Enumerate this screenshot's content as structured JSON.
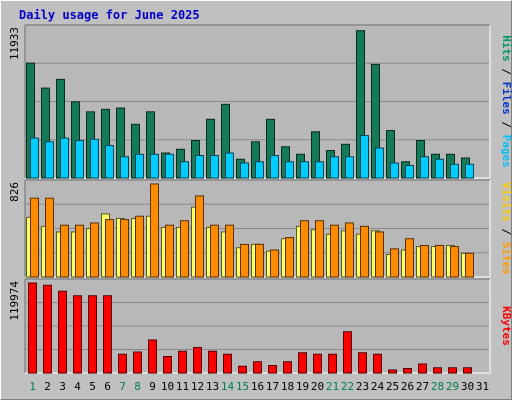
{
  "title": "Daily usage for June 2025",
  "chart_data": {
    "type": "bar",
    "title": "Daily usage for June 2025",
    "days": [
      1,
      2,
      3,
      4,
      5,
      6,
      7,
      8,
      9,
      10,
      11,
      12,
      13,
      14,
      15,
      16,
      17,
      18,
      19,
      20,
      21,
      22,
      23,
      24,
      25,
      26,
      27,
      28,
      29,
      30,
      31
    ],
    "weekend_days": [
      1,
      7,
      8,
      14,
      15,
      21,
      22,
      28,
      29
    ],
    "panels": [
      {
        "id": "hits-files-pages",
        "ymax_label": "11933",
        "ymax": 11933,
        "right_labels": [
          "Pages",
          "Files",
          "Hits"
        ],
        "right_label_colors": [
          "#00bfff",
          "#0033cc",
          "#009966"
        ],
        "series": [
          {
            "name": "Hits",
            "color": "#157a57",
            "values": [
              9200,
              7200,
              7900,
              6100,
              5300,
              5500,
              5600,
              4300,
              5300,
              2000,
              2300,
              3000,
              4700,
              5900,
              1500,
              2900,
              4700,
              2500,
              1900,
              3700,
              2200,
              2700,
              11800,
              9100,
              3800,
              1300,
              3000,
              1900,
              1900,
              1600,
              0
            ]
          },
          {
            "name": "Files",
            "color": "#00ccff",
            "values": [
              3200,
              2900,
              3200,
              3000,
              3100,
              2600,
              1700,
              1900,
              1900,
              1900,
              1300,
              1800,
              1800,
              2000,
              1200,
              1300,
              1800,
              1300,
              1300,
              1300,
              1700,
              1700,
              3400,
              2400,
              1200,
              1000,
              1700,
              1500,
              1100,
              1100,
              0
            ]
          },
          {
            "name": "Pages",
            "color": "#00ccff",
            "values": [
              0,
              0,
              0,
              0,
              0,
              0,
              0,
              0,
              0,
              0,
              0,
              0,
              0,
              0,
              0,
              0,
              0,
              0,
              0,
              0,
              0,
              0,
              0,
              0,
              0,
              0,
              0,
              0,
              0,
              0,
              0
            ]
          }
        ]
      },
      {
        "id": "visits-sites",
        "ymax_label": "826",
        "ymax": 826,
        "right_labels": [
          "Sites",
          "Visits"
        ],
        "right_label_colors": [
          "#ff9900",
          "#ffcc00"
        ],
        "series": [
          {
            "name": "Visits",
            "color": "#ffff66",
            "values": [
              530,
              450,
              400,
              400,
              430,
              560,
              520,
              520,
              540,
              440,
              440,
              620,
              440,
              400,
              260,
              290,
              230,
              340,
              450,
              420,
              380,
              410,
              380,
              410,
              200,
              240,
              270,
              270,
              280,
              210,
              0
            ]
          },
          {
            "name": "Sites",
            "color": "#ff8c00",
            "values": [
              700,
              700,
              460,
              460,
              480,
              510,
              510,
              540,
              826,
              460,
              500,
              720,
              460,
              460,
              290,
              290,
              240,
              350,
              500,
              500,
              460,
              480,
              450,
              400,
              250,
              340,
              280,
              280,
              270,
              210,
              0
            ]
          }
        ]
      },
      {
        "id": "kbytes",
        "ymax_label": "119974",
        "ymax": 119974,
        "right_labels": [
          "KBytes"
        ],
        "right_label_colors": [
          "#ff0000"
        ],
        "series": [
          {
            "name": "KBytes",
            "color": "#ff0000",
            "values": [
              119974,
              117000,
              109000,
              103000,
              103000,
              103000,
              25000,
              28000,
              44000,
              22000,
              29000,
              34000,
              29000,
              25000,
              9000,
              15000,
              10000,
              15000,
              27000,
              25000,
              25000,
              55000,
              27000,
              25000,
              4000,
              6000,
              12000,
              7000,
              7000,
              7000,
              0
            ]
          }
        ]
      }
    ]
  }
}
